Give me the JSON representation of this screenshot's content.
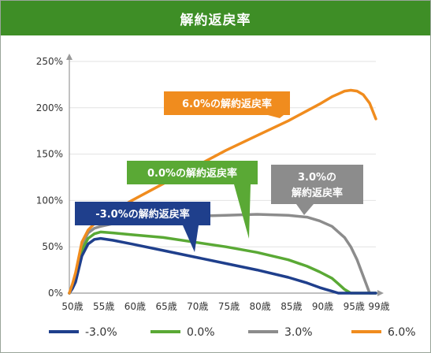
{
  "chart_data": {
    "type": "line",
    "title": "解約返戻率",
    "x_tick_labels": [
      "50歳",
      "55歳",
      "60歳",
      "65歳",
      "70歳",
      "75歳",
      "80歳",
      "85歳",
      "90歳",
      "95歳",
      "99歳"
    ],
    "y_tick_labels": [
      "0%",
      "50%",
      "100%",
      "150%",
      "200%",
      "250%"
    ],
    "xlim": [
      50,
      99
    ],
    "ylim": [
      0,
      250
    ],
    "grid": true,
    "legend_position": "bottom",
    "series": [
      {
        "name": "-3.0%",
        "color": "#1f3f8c",
        "callout": [
          "-3.0%の解約返戻率"
        ],
        "x": [
          50,
          50.5,
          51,
          52,
          53,
          54,
          55,
          57,
          60,
          65,
          70,
          75,
          80,
          85,
          88,
          90,
          91,
          92,
          93,
          95,
          97,
          99
        ],
        "y": [
          0,
          5,
          12,
          40,
          53,
          58,
          59,
          57,
          53,
          46,
          39,
          32,
          25,
          17,
          11,
          6,
          4,
          2,
          0,
          0,
          0,
          0
        ]
      },
      {
        "name": "0.0%",
        "color": "#5aa935",
        "callout": [
          "0.0%の解約返戻率"
        ],
        "x": [
          50,
          50.5,
          51,
          52,
          53,
          54,
          55,
          57,
          60,
          65,
          70,
          75,
          80,
          85,
          88,
          90,
          92,
          93,
          94,
          95,
          97,
          99
        ],
        "y": [
          0,
          6,
          14,
          46,
          59,
          64,
          66,
          65,
          63,
          60,
          55,
          50,
          44,
          36,
          29,
          23,
          16,
          10,
          4,
          0,
          0,
          0
        ]
      },
      {
        "name": "3.0%",
        "color": "#8c8c8c",
        "callout": [
          "3.0%の",
          "解約返戻率"
        ],
        "x": [
          50,
          50.5,
          51,
          52,
          53,
          54,
          55,
          57,
          60,
          65,
          70,
          75,
          80,
          85,
          88,
          90,
          92,
          94,
          95,
          96,
          97,
          98,
          99
        ],
        "y": [
          0,
          8,
          18,
          52,
          65,
          70,
          72,
          75,
          78,
          81,
          83,
          84,
          85,
          84,
          82,
          78,
          72,
          60,
          50,
          36,
          18,
          0,
          0
        ]
      },
      {
        "name": "6.0%",
        "color": "#f08c1e",
        "callout": [
          "6.0%の解約返戻率"
        ],
        "x": [
          50,
          50.5,
          51,
          52,
          53,
          54,
          55,
          57,
          60,
          65,
          70,
          75,
          80,
          85,
          90,
          92,
          93,
          94,
          95,
          96,
          97,
          98,
          99
        ],
        "y": [
          0,
          10,
          22,
          55,
          68,
          75,
          80,
          88,
          100,
          118,
          136,
          154,
          170,
          186,
          204,
          212,
          215,
          218,
          219,
          218,
          214,
          205,
          188
        ]
      }
    ]
  }
}
